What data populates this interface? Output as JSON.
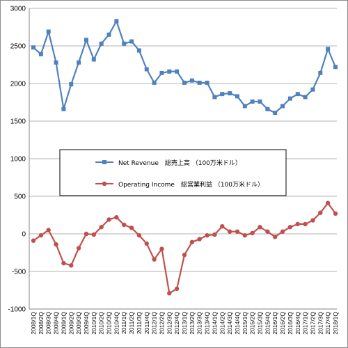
{
  "chart_data": {
    "type": "line",
    "title": "",
    "xlabel": "",
    "ylabel": "",
    "ylim": [
      -1000,
      3000
    ],
    "yticks": [
      3000,
      2500,
      2000,
      1500,
      1000,
      500,
      0,
      -500,
      -1000
    ],
    "yticks_labels": [
      "3000",
      "2500",
      "2000",
      "1500",
      "1000",
      "500",
      "0",
      "-500",
      "-1000"
    ],
    "grid": "horizontal",
    "legend_position": "center",
    "categories": [
      "2008/1Q",
      "2008/2Q",
      "2008/3Q",
      "2008/4Q",
      "2009/1Q",
      "2009/2Q",
      "2009/3Q",
      "2009/4Q",
      "2010/1Q",
      "2010/2Q",
      "2010/3Q",
      "2010/4Q",
      "2011/1Q",
      "2011/2Q",
      "2011/3Q",
      "2011/4Q",
      "2012/1Q",
      "2012/2Q",
      "2012/3Q",
      "2012/4Q",
      "2013/1Q",
      "2013/2Q",
      "2013/3Q",
      "2013/4Q",
      "2014/1Q",
      "2014/2Q",
      "2014/3Q",
      "2014/4Q",
      "2015/1Q",
      "2015/2Q",
      "2015/3Q",
      "2015/4Q",
      "2016/1Q",
      "2016/2Q",
      "2016/3Q",
      "2016/4Q",
      "2017/1Q",
      "2017/2Q",
      "2017/3Q",
      "2017/4Q",
      "2018/1Q"
    ],
    "x_tick_labels": [
      "2008/1Q",
      "2008/2Q",
      "2008/3Q",
      "2008/4Q",
      "2009/1Q",
      "2009/2Q",
      "2009/3Q",
      "2009/4Q",
      "2010/1Q",
      "2010/2Q",
      "2010/3Q",
      "2010/4Q",
      "2011/1Q",
      "2011/2Q",
      "2011/3Q",
      "2011/4Q",
      "2012/1Q",
      "2012/2Q",
      "2012/3Q",
      "2012/4Q",
      "2013/1Q",
      "2013/2Q",
      "2013/3Q",
      "2013/4Q",
      "2014/1Q",
      "2014/2Q",
      "2014/3Q",
      "2014/4Q",
      "2015/1Q",
      "2015/2Q",
      "2015/3Q",
      "2015/4Q",
      "2016/1Q",
      "2016/2Q",
      "2016/3Q",
      "2016/4Q",
      "2017/1Q",
      "2017/2Q",
      "2017/3Q",
      "2017/4Q",
      "2018/1Q"
    ],
    "series": [
      {
        "name": "Net Revenue　総売上高 （100万米ドル）",
        "color": "#4f81bd",
        "marker": "square",
        "values": [
          2480,
          2390,
          2690,
          2280,
          1660,
          1990,
          2280,
          2580,
          2320,
          2530,
          2650,
          2830,
          2530,
          2560,
          2440,
          2190,
          2010,
          2140,
          2160,
          2160,
          2010,
          2040,
          2010,
          2010,
          1820,
          1860,
          1870,
          1830,
          1700,
          1760,
          1760,
          1660,
          1610,
          1700,
          1800,
          1860,
          1820,
          1920,
          2140,
          2460,
          2220
        ]
      },
      {
        "name": "Operating Income　総営業利益 （100万米ドル）",
        "color": "#c0504d",
        "marker": "circle",
        "values": [
          -90,
          -20,
          50,
          -140,
          -390,
          -420,
          -190,
          0,
          -10,
          90,
          190,
          220,
          120,
          80,
          -20,
          -130,
          -340,
          -200,
          -790,
          -730,
          -280,
          -110,
          -70,
          -20,
          -10,
          100,
          30,
          30,
          -20,
          10,
          90,
          30,
          -40,
          30,
          90,
          130,
          130,
          180,
          280,
          410,
          270
        ]
      }
    ]
  }
}
